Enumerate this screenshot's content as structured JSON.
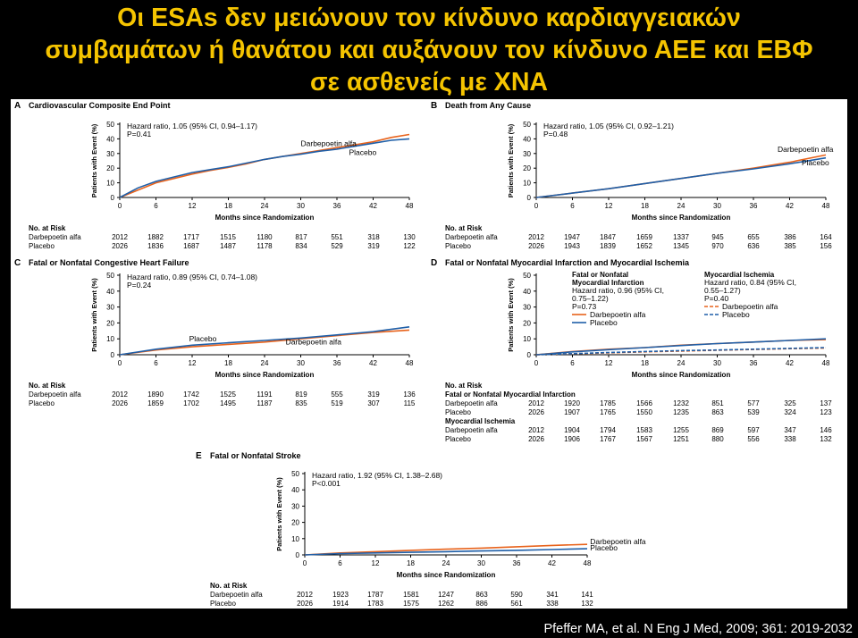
{
  "slide": {
    "title_lines": [
      "Οι ESAs δεν μειώνουν τον κίνδυνο καρδιαγγειακών",
      "συμβαμάτων ή θανάτου και αυξάνουν τον κίνδυνο ΑΕΕ και ΕΒΦ",
      "σε ασθενείς με ΧΝΑ"
    ],
    "citation": "Pfeffer MA, et al. N Eng J Med, 2009; 361: 2019-2032"
  },
  "colors": {
    "darbepoetin": "#e8631c",
    "placebo": "#1f5fa8",
    "title": "#f5c400"
  },
  "chart_data": [
    {
      "type": "line",
      "letter": "A",
      "title": "Cardiovascular Composite End Point",
      "xlabel": "Months since Randomization",
      "ylabel": "Patients with Event (%)",
      "xlim": [
        0,
        48
      ],
      "ylim": [
        0,
        50
      ],
      "xticks": [
        0,
        6,
        12,
        18,
        24,
        30,
        36,
        42,
        48
      ],
      "yticks": [
        0,
        10,
        20,
        30,
        40,
        50
      ],
      "annotation": [
        "Hazard ratio, 1.05 (95% CI, 0.94–1.17)",
        "P=0.41"
      ],
      "series_labels": [
        {
          "text": "Darbepoetin alfa",
          "x": 30,
          "y": 35
        },
        {
          "text": "Placebo",
          "x": 38,
          "y": 29
        }
      ],
      "series": [
        {
          "name": "Darbepoetin alfa",
          "color": "darbepoetin",
          "x": [
            0,
            3,
            6,
            9,
            12,
            15,
            18,
            21,
            24,
            27,
            30,
            33,
            36,
            39,
            42,
            45,
            48
          ],
          "y": [
            0,
            5,
            10,
            13,
            16,
            18.5,
            20.5,
            23,
            26,
            28,
            30,
            32,
            34,
            36,
            38,
            41,
            43
          ]
        },
        {
          "name": "Placebo",
          "color": "placebo",
          "x": [
            0,
            3,
            6,
            9,
            12,
            15,
            18,
            21,
            24,
            27,
            30,
            33,
            36,
            39,
            42,
            45,
            48
          ],
          "y": [
            0,
            6.5,
            11,
            14,
            17,
            19,
            21,
            23.5,
            26,
            28,
            29.5,
            31.5,
            33,
            35,
            37,
            39,
            40
          ]
        }
      ],
      "risk_header": "No. at Risk",
      "risk": [
        {
          "label": "Darbepoetin alfa",
          "values": [
            "2012",
            "1882",
            "1717",
            "1515",
            "1180",
            "817",
            "551",
            "318",
            "130"
          ]
        },
        {
          "label": "Placebo",
          "values": [
            "2026",
            "1836",
            "1687",
            "1487",
            "1178",
            "834",
            "529",
            "319",
            "122"
          ]
        }
      ]
    },
    {
      "type": "line",
      "letter": "B",
      "title": "Death from Any Cause",
      "xlabel": "Months since Randomization",
      "ylabel": "Patients with Event (%)",
      "xlim": [
        0,
        48
      ],
      "ylim": [
        0,
        50
      ],
      "xticks": [
        0,
        6,
        12,
        18,
        24,
        30,
        36,
        42,
        48
      ],
      "yticks": [
        0,
        10,
        20,
        30,
        40,
        50
      ],
      "annotation": [
        "Hazard ratio, 1.05 (95% CI, 0.92–1.21)",
        "P=0.48"
      ],
      "series_labels": [
        {
          "text": "Darbepoetin alfa",
          "x": 40,
          "y": 31
        },
        {
          "text": "Placebo",
          "x": 44,
          "y": 22
        }
      ],
      "series": [
        {
          "name": "Darbepoetin alfa",
          "color": "darbepoetin",
          "x": [
            0,
            6,
            12,
            18,
            24,
            30,
            36,
            42,
            48
          ],
          "y": [
            0,
            3,
            6,
            9.5,
            13,
            16.5,
            20,
            24,
            29
          ]
        },
        {
          "name": "Placebo",
          "color": "placebo",
          "x": [
            0,
            6,
            12,
            18,
            24,
            30,
            36,
            42,
            48
          ],
          "y": [
            0,
            3,
            6,
            9.5,
            13,
            16.5,
            19.5,
            23,
            27
          ]
        }
      ],
      "risk_header": "No. at Risk",
      "risk": [
        {
          "label": "Darbepoetin alfa",
          "values": [
            "2012",
            "1947",
            "1847",
            "1659",
            "1337",
            "945",
            "655",
            "386",
            "164"
          ]
        },
        {
          "label": "Placebo",
          "values": [
            "2026",
            "1943",
            "1839",
            "1652",
            "1345",
            "970",
            "636",
            "385",
            "156"
          ]
        }
      ]
    },
    {
      "type": "line",
      "letter": "C",
      "title": "Fatal or Nonfatal Congestive Heart Failure",
      "xlabel": "Months since Randomization",
      "ylabel": "Patients with Event (%)",
      "xlim": [
        0,
        48
      ],
      "ylim": [
        0,
        50
      ],
      "xticks": [
        0,
        6,
        12,
        18,
        24,
        30,
        36,
        42,
        48
      ],
      "yticks": [
        0,
        10,
        20,
        30,
        40,
        50
      ],
      "annotation": [
        "Hazard ratio, 0.89 (95% CI, 0.74–1.08)",
        "P=0.24"
      ],
      "series_labels": [
        {
          "text": "Placebo",
          "x": 11.5,
          "y": 8.5
        },
        {
          "text": "Darbepoetin alfa",
          "x": 27.5,
          "y": 6.5
        }
      ],
      "series": [
        {
          "name": "Darbepoetin alfa",
          "color": "darbepoetin",
          "x": [
            0,
            6,
            12,
            18,
            24,
            30,
            36,
            42,
            48
          ],
          "y": [
            0,
            3,
            5,
            6.5,
            8,
            10,
            12,
            14,
            15.5
          ]
        },
        {
          "name": "Placebo",
          "color": "placebo",
          "x": [
            0,
            6,
            12,
            18,
            24,
            30,
            36,
            42,
            48
          ],
          "y": [
            0,
            3.5,
            6,
            7.5,
            9,
            10.5,
            12.5,
            14.5,
            17.5
          ]
        }
      ],
      "risk_header": "No. at Risk",
      "risk": [
        {
          "label": "Darbepoetin alfa",
          "values": [
            "2012",
            "1890",
            "1742",
            "1525",
            "1191",
            "819",
            "555",
            "319",
            "136"
          ]
        },
        {
          "label": "Placebo",
          "values": [
            "2026",
            "1859",
            "1702",
            "1495",
            "1187",
            "835",
            "519",
            "307",
            "115"
          ]
        }
      ]
    },
    {
      "type": "line",
      "letter": "D",
      "title": "Fatal or Nonfatal Myocardial Infarction and Myocardial Ischemia",
      "xlabel": "Months since Randomization",
      "ylabel": "Patients with Event (%)",
      "xlim": [
        0,
        48
      ],
      "ylim": [
        0,
        50
      ],
      "xticks": [
        0,
        6,
        12,
        18,
        24,
        30,
        36,
        42,
        48
      ],
      "yticks": [
        0,
        10,
        20,
        30,
        40,
        50
      ],
      "legend_groups": [
        {
          "title": [
            "Fatal or Nonfatal",
            "Myocardial Infarction"
          ],
          "hr": [
            "Hazard ratio, 0.96 (95% CI,",
            "0.75–1.22)"
          ],
          "p": "P=0.73",
          "dash": false
        },
        {
          "title": [
            "Myocardial Ischemia"
          ],
          "hr": [
            "Hazard ratio, 0.84 (95% CI,",
            "0.55–1.27)"
          ],
          "p": "P=0.40",
          "dash": true
        }
      ],
      "legend_items": [
        "Darbepoetin alfa",
        "Placebo"
      ],
      "series": [
        {
          "name": "Darbepoetin alfa",
          "group": "Fatal or Nonfatal Myocardial Infarction",
          "color": "darbepoetin",
          "dash": false,
          "x": [
            0,
            6,
            12,
            18,
            24,
            30,
            36,
            42,
            48
          ],
          "y": [
            0,
            2,
            3.5,
            4.5,
            6,
            7,
            8,
            9,
            9.5
          ]
        },
        {
          "name": "Placebo",
          "group": "Fatal or Nonfatal Myocardial Infarction",
          "color": "placebo",
          "dash": false,
          "x": [
            0,
            6,
            12,
            18,
            24,
            30,
            36,
            42,
            48
          ],
          "y": [
            0,
            1.8,
            3.2,
            4.5,
            5.8,
            7,
            8,
            9,
            10
          ]
        },
        {
          "name": "Darbepoetin alfa",
          "group": "Myocardial Ischemia",
          "color": "darbepoetin",
          "dash": true,
          "x": [
            0,
            6,
            12,
            18,
            24,
            30,
            36,
            42,
            48
          ],
          "y": [
            0,
            0.6,
            1.2,
            1.8,
            2.3,
            2.8,
            3.3,
            3.8,
            4.2
          ]
        },
        {
          "name": "Placebo",
          "group": "Myocardial Ischemia",
          "color": "placebo",
          "dash": true,
          "x": [
            0,
            6,
            12,
            18,
            24,
            30,
            36,
            42,
            48
          ],
          "y": [
            0,
            0.7,
            1.4,
            2,
            2.6,
            3,
            3.5,
            4,
            4.5
          ]
        }
      ],
      "risk_header": "No. at Risk",
      "risk_sections": [
        {
          "title": "Fatal or Nonfatal Myocardial Infarction",
          "rows": [
            {
              "label": "Darbepoetin alfa",
              "values": [
                "2012",
                "1920",
                "1785",
                "1566",
                "1232",
                "851",
                "577",
                "325",
                "137"
              ]
            },
            {
              "label": "Placebo",
              "values": [
                "2026",
                "1907",
                "1765",
                "1550",
                "1235",
                "863",
                "539",
                "324",
                "123"
              ]
            }
          ]
        },
        {
          "title": "Myocardial Ischemia",
          "rows": [
            {
              "label": "Darbepoetin alfa",
              "values": [
                "2012",
                "1904",
                "1794",
                "1583",
                "1255",
                "869",
                "597",
                "347",
                "146"
              ]
            },
            {
              "label": "Placebo",
              "values": [
                "2026",
                "1906",
                "1767",
                "1567",
                "1251",
                "880",
                "556",
                "338",
                "132"
              ]
            }
          ]
        }
      ]
    },
    {
      "type": "line",
      "letter": "E",
      "title": "Fatal or Nonfatal Stroke",
      "xlabel": "Months since Randomization",
      "ylabel": "Patients with Event (%)",
      "xlim": [
        0,
        48
      ],
      "ylim": [
        0,
        50
      ],
      "xticks": [
        0,
        6,
        12,
        18,
        24,
        30,
        36,
        42,
        48
      ],
      "yticks": [
        0,
        10,
        20,
        30,
        40,
        50
      ],
      "annotation": [
        "Hazard ratio, 1.92 (95% CI, 1.38–2.68)",
        "P<0.001"
      ],
      "series_labels": [
        {
          "text": "Darbepoetin alfa",
          "x": 48.5,
          "y": 6.5
        },
        {
          "text": "Placebo",
          "x": 48.5,
          "y": 2.8
        }
      ],
      "series": [
        {
          "name": "Darbepoetin alfa",
          "color": "darbepoetin",
          "x": [
            0,
            6,
            12,
            18,
            24,
            30,
            36,
            42,
            48
          ],
          "y": [
            0,
            1.2,
            2,
            2.8,
            3.5,
            4.2,
            5,
            5.8,
            6.5
          ]
        },
        {
          "name": "Placebo",
          "color": "placebo",
          "x": [
            0,
            6,
            12,
            18,
            24,
            30,
            36,
            42,
            48
          ],
          "y": [
            0,
            0.8,
            1.2,
            1.6,
            2,
            2.4,
            2.8,
            3.3,
            3.8
          ]
        }
      ],
      "risk_header": "No. at Risk",
      "risk": [
        {
          "label": "Darbepoetin alfa",
          "values": [
            "2012",
            "1923",
            "1787",
            "1581",
            "1247",
            "863",
            "590",
            "341",
            "141"
          ]
        },
        {
          "label": "Placebo",
          "values": [
            "2026",
            "1914",
            "1783",
            "1575",
            "1262",
            "886",
            "561",
            "338",
            "132"
          ]
        }
      ]
    }
  ]
}
